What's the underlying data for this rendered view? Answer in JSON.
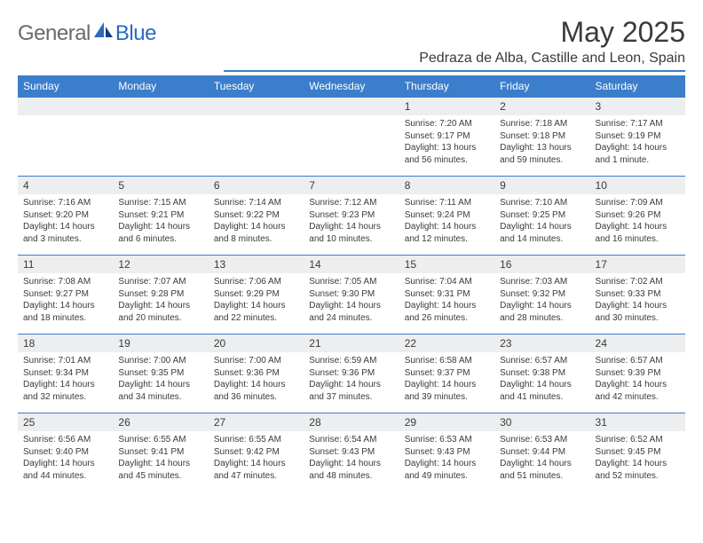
{
  "logo": {
    "general": "General",
    "blue": "Blue"
  },
  "header": {
    "title": "May 2025",
    "location": "Pedraza de Alba, Castille and Leon, Spain"
  },
  "colors": {
    "accent": "#3b7ecb",
    "text": "#3a3a3a",
    "daybg": "#eceef0",
    "logo_gray": "#6a6a6a",
    "logo_blue": "#2a6bbf"
  },
  "dayNames": [
    "Sunday",
    "Monday",
    "Tuesday",
    "Wednesday",
    "Thursday",
    "Friday",
    "Saturday"
  ],
  "weeks": [
    [
      null,
      null,
      null,
      null,
      {
        "n": "1",
        "sr": "7:20 AM",
        "ss": "9:17 PM",
        "dl": "13 hours and 56 minutes."
      },
      {
        "n": "2",
        "sr": "7:18 AM",
        "ss": "9:18 PM",
        "dl": "13 hours and 59 minutes."
      },
      {
        "n": "3",
        "sr": "7:17 AM",
        "ss": "9:19 PM",
        "dl": "14 hours and 1 minute."
      }
    ],
    [
      {
        "n": "4",
        "sr": "7:16 AM",
        "ss": "9:20 PM",
        "dl": "14 hours and 3 minutes."
      },
      {
        "n": "5",
        "sr": "7:15 AM",
        "ss": "9:21 PM",
        "dl": "14 hours and 6 minutes."
      },
      {
        "n": "6",
        "sr": "7:14 AM",
        "ss": "9:22 PM",
        "dl": "14 hours and 8 minutes."
      },
      {
        "n": "7",
        "sr": "7:12 AM",
        "ss": "9:23 PM",
        "dl": "14 hours and 10 minutes."
      },
      {
        "n": "8",
        "sr": "7:11 AM",
        "ss": "9:24 PM",
        "dl": "14 hours and 12 minutes."
      },
      {
        "n": "9",
        "sr": "7:10 AM",
        "ss": "9:25 PM",
        "dl": "14 hours and 14 minutes."
      },
      {
        "n": "10",
        "sr": "7:09 AM",
        "ss": "9:26 PM",
        "dl": "14 hours and 16 minutes."
      }
    ],
    [
      {
        "n": "11",
        "sr": "7:08 AM",
        "ss": "9:27 PM",
        "dl": "14 hours and 18 minutes."
      },
      {
        "n": "12",
        "sr": "7:07 AM",
        "ss": "9:28 PM",
        "dl": "14 hours and 20 minutes."
      },
      {
        "n": "13",
        "sr": "7:06 AM",
        "ss": "9:29 PM",
        "dl": "14 hours and 22 minutes."
      },
      {
        "n": "14",
        "sr": "7:05 AM",
        "ss": "9:30 PM",
        "dl": "14 hours and 24 minutes."
      },
      {
        "n": "15",
        "sr": "7:04 AM",
        "ss": "9:31 PM",
        "dl": "14 hours and 26 minutes."
      },
      {
        "n": "16",
        "sr": "7:03 AM",
        "ss": "9:32 PM",
        "dl": "14 hours and 28 minutes."
      },
      {
        "n": "17",
        "sr": "7:02 AM",
        "ss": "9:33 PM",
        "dl": "14 hours and 30 minutes."
      }
    ],
    [
      {
        "n": "18",
        "sr": "7:01 AM",
        "ss": "9:34 PM",
        "dl": "14 hours and 32 minutes."
      },
      {
        "n": "19",
        "sr": "7:00 AM",
        "ss": "9:35 PM",
        "dl": "14 hours and 34 minutes."
      },
      {
        "n": "20",
        "sr": "7:00 AM",
        "ss": "9:36 PM",
        "dl": "14 hours and 36 minutes."
      },
      {
        "n": "21",
        "sr": "6:59 AM",
        "ss": "9:36 PM",
        "dl": "14 hours and 37 minutes."
      },
      {
        "n": "22",
        "sr": "6:58 AM",
        "ss": "9:37 PM",
        "dl": "14 hours and 39 minutes."
      },
      {
        "n": "23",
        "sr": "6:57 AM",
        "ss": "9:38 PM",
        "dl": "14 hours and 41 minutes."
      },
      {
        "n": "24",
        "sr": "6:57 AM",
        "ss": "9:39 PM",
        "dl": "14 hours and 42 minutes."
      }
    ],
    [
      {
        "n": "25",
        "sr": "6:56 AM",
        "ss": "9:40 PM",
        "dl": "14 hours and 44 minutes."
      },
      {
        "n": "26",
        "sr": "6:55 AM",
        "ss": "9:41 PM",
        "dl": "14 hours and 45 minutes."
      },
      {
        "n": "27",
        "sr": "6:55 AM",
        "ss": "9:42 PM",
        "dl": "14 hours and 47 minutes."
      },
      {
        "n": "28",
        "sr": "6:54 AM",
        "ss": "9:43 PM",
        "dl": "14 hours and 48 minutes."
      },
      {
        "n": "29",
        "sr": "6:53 AM",
        "ss": "9:43 PM",
        "dl": "14 hours and 49 minutes."
      },
      {
        "n": "30",
        "sr": "6:53 AM",
        "ss": "9:44 PM",
        "dl": "14 hours and 51 minutes."
      },
      {
        "n": "31",
        "sr": "6:52 AM",
        "ss": "9:45 PM",
        "dl": "14 hours and 52 minutes."
      }
    ]
  ],
  "labels": {
    "sunrise": "Sunrise: ",
    "sunset": "Sunset: ",
    "daylight": "Daylight: "
  }
}
